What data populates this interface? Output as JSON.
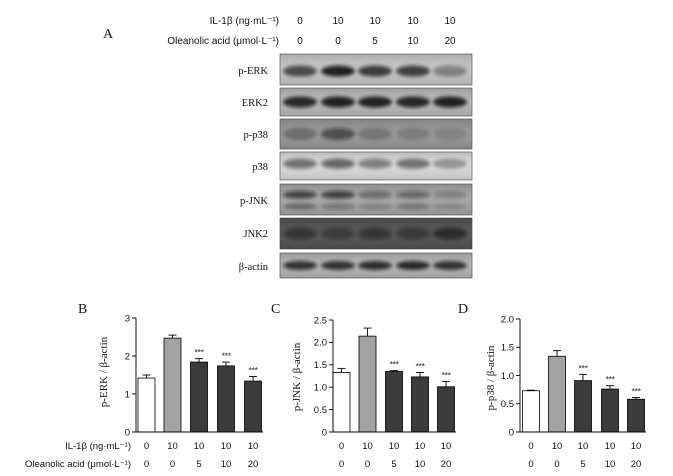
{
  "panel_a": {
    "label": "A",
    "il1b_label": "IL-1β (ng·mL⁻¹)",
    "il1b_values": [
      "0",
      "10",
      "10",
      "10",
      "10"
    ],
    "oa_label": "Oleanolic acid (μmol·L⁻¹)",
    "oa_values": [
      "0",
      "0",
      "5",
      "10",
      "20"
    ],
    "blot_labels": [
      "p-ERK",
      "ERK2",
      "p-p38",
      "p38",
      "p-JNK",
      "JNK2",
      "β-actin"
    ]
  },
  "bottom_rows": {
    "il1b_label": "IL-1β (ng·mL⁻¹)",
    "oa_label": "Oleanolic acid (μmol·L⁻¹)"
  },
  "chart_data": [
    {
      "panel": "B",
      "type": "bar",
      "ylabel": "p-ERK / β-actin",
      "ylim": [
        0,
        3
      ],
      "yticks": [
        0,
        1,
        2,
        3
      ],
      "ytick_labels": [
        "0",
        "1",
        "2",
        "3"
      ],
      "x_labels": {
        "il1b": [
          "0",
          "10",
          "10",
          "10",
          "10"
        ],
        "oa": [
          "0",
          "0",
          "5",
          "10",
          "20"
        ]
      },
      "values": [
        1.42,
        2.47,
        1.84,
        1.74,
        1.34
      ],
      "errors": [
        0.08,
        0.08,
        0.09,
        0.1,
        0.12
      ],
      "annotations": [
        "",
        "",
        "***",
        "***",
        "***"
      ],
      "bar_colors": [
        "#ffffff",
        "#a3a3a3",
        "#3b3b3b",
        "#3b3b3b",
        "#3b3b3b"
      ],
      "grid": false
    },
    {
      "panel": "C",
      "type": "bar",
      "ylabel": "p-JNK / β-actin",
      "ylim": [
        0,
        2.5
      ],
      "yticks": [
        0,
        0.5,
        1,
        1.5,
        2,
        2.5
      ],
      "ytick_labels": [
        "0",
        "0.5",
        "1.0",
        "1.5",
        "2.0",
        "2.5"
      ],
      "x_labels": {
        "il1b": [
          "0",
          "10",
          "10",
          "10",
          "10"
        ],
        "oa": [
          "0",
          "0",
          "5",
          "10",
          "20"
        ]
      },
      "values": [
        1.33,
        2.14,
        1.35,
        1.23,
        1.01
      ],
      "errors": [
        0.09,
        0.18,
        0.02,
        0.1,
        0.12
      ],
      "annotations": [
        "",
        "",
        "***",
        "***",
        "***"
      ],
      "bar_colors": [
        "#ffffff",
        "#a3a3a3",
        "#3b3b3b",
        "#3b3b3b",
        "#3b3b3b"
      ],
      "grid": false
    },
    {
      "panel": "D",
      "type": "bar",
      "ylabel": "p-p38 / β-actin",
      "ylim": [
        0,
        2
      ],
      "yticks": [
        0,
        0.5,
        1,
        1.5,
        2
      ],
      "ytick_labels": [
        "0",
        "0.5",
        "1.0",
        "1.5",
        "2.0"
      ],
      "x_labels": {
        "il1b": [
          "0",
          "10",
          "10",
          "10",
          "10"
        ],
        "oa": [
          "0",
          "0",
          "5",
          "10",
          "20"
        ]
      },
      "values": [
        0.73,
        1.34,
        0.91,
        0.76,
        0.58
      ],
      "errors": [
        0.01,
        0.1,
        0.11,
        0.06,
        0.03
      ],
      "annotations": [
        "",
        "",
        "***",
        "***",
        "***"
      ],
      "bar_colors": [
        "#ffffff",
        "#a3a3a3",
        "#3b3b3b",
        "#3b3b3b",
        "#3b3b3b"
      ],
      "grid": false
    }
  ]
}
